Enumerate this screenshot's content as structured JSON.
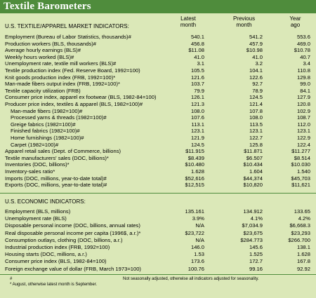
{
  "title": "Textile Barometers",
  "columns": {
    "latest": [
      "Latest",
      "month"
    ],
    "previous": [
      "Previous",
      "month"
    ],
    "year_ago": [
      "Year",
      "ago"
    ]
  },
  "section1": {
    "title": "U.S. TEXTILE/APPAREL MARKET INDICATORS:",
    "rows": [
      {
        "label": "Employment (Bureau of Labor Statistics, thousands)#",
        "latest": "540.1",
        "previous": "541.2",
        "year_ago": "553.6"
      },
      {
        "label": "Production workers (BLS, thousands)#",
        "latest": "456.8",
        "previous": "457.9",
        "year_ago": "469.0"
      },
      {
        "label": "Average hourly earnings (BLS)#",
        "latest": "$11.08",
        "previous": "$10.98",
        "year_ago": "$10.78"
      },
      {
        "label": "Weekly hours worked (BLS)#",
        "latest": "41.0",
        "previous": "41.0",
        "year_ago": "40.7"
      },
      {
        "label": "Unemployment rate, textile mill workers (BLS)#",
        "latest": "3.1",
        "previous": "3.2",
        "year_ago": "3.4"
      },
      {
        "label": "Textile production index (Fed. Reserve Board, 1992=100)",
        "latest": "105.5",
        "previous": "104.1",
        "year_ago": "110.8"
      },
      {
        "label": "Knit goods production index (FRB, 1992=100)*",
        "latest": "121.6",
        "previous": "122.6",
        "year_ago": "129.8"
      },
      {
        "label": "Man-made fibers output index (FRB, 1992=100)*",
        "latest": "103.7",
        "previous": "92.7",
        "year_ago": "99.0"
      },
      {
        "label": "Textile capacity utilization (FRB)",
        "latest": "79.9",
        "previous": "78.9",
        "year_ago": "84.1"
      },
      {
        "label": "Consumer price index, apparel ex footwear (BLS, 1982-84=100)",
        "latest": "126.1",
        "previous": "124.5",
        "year_ago": "127.9"
      },
      {
        "label": "Producer price index, textiles & apparel (BLS, 1982=100)#",
        "latest": "121.3",
        "previous": "121.4",
        "year_ago": "120.8"
      },
      {
        "label": "Man-made fibers (1982=100)#",
        "indent": true,
        "latest": "108.0",
        "previous": "107.8",
        "year_ago": "102.9"
      },
      {
        "label": "Processed yarns & threads (1982=100)#",
        "indent": true,
        "latest": "107.6",
        "previous": "108.0",
        "year_ago": "108.7"
      },
      {
        "label": "Greige fabrics (1982=100)#",
        "indent": true,
        "latest": "113.1",
        "previous": "113.5",
        "year_ago": "112.0"
      },
      {
        "label": "Finished fabrics (1982=100)#",
        "indent": true,
        "latest": "123.1",
        "previous": "123.1",
        "year_ago": "123.1"
      },
      {
        "label": "Home furnishings (1982=100)#",
        "indent": true,
        "latest": "121.9",
        "previous": "122.7",
        "year_ago": "122.9"
      },
      {
        "label": "Carpet (1982=100)#",
        "indent": true,
        "latest": "124.5",
        "previous": "125.8",
        "year_ago": "122.4"
      },
      {
        "label": "Apparel retail sales (Dept. of Commerce, billions)",
        "latest": "$11.915",
        "previous": "$11.871",
        "year_ago": "$11.277"
      },
      {
        "label": "Textile manufacturers' sales (DOC, billions)*",
        "latest": "$8.439",
        "previous": "$6.507",
        "year_ago": "$8.514"
      },
      {
        "label": "Inventories (DOC, billions)*",
        "latest": "$10.480",
        "previous": "$10.434",
        "year_ago": "$10.030"
      },
      {
        "label": "Inventory-sales ratio*",
        "latest": "1.628",
        "previous": "1.604",
        "year_ago": "1.540"
      },
      {
        "label": "Imports (DOC, millions, year-to-date total)#",
        "latest": "$52,616",
        "previous": "$44,374",
        "year_ago": "$45,703"
      },
      {
        "label": "Exports (DOC, millions, year-to-date total)#",
        "latest": "$12,515",
        "previous": "$10,820",
        "year_ago": "$11,621"
      }
    ]
  },
  "section2": {
    "title": "U.S. ECONOMIC INDICATORS:",
    "rows": [
      {
        "label": "Employment (BLS, millions)",
        "latest": "135.161",
        "previous": "134.912",
        "year_ago": "133.65"
      },
      {
        "label": "Unemployment rate (BLS)",
        "latest": "3.9%",
        "previous": "4.1%",
        "year_ago": "4.2%"
      },
      {
        "label": "Disposable personal income (DOC, billions, annual rates)",
        "latest": "N/A",
        "previous": "$7,034.9",
        "year_ago": "$6,668.3"
      },
      {
        "label": "Real disposable personal income per capita (1996$, a.r.)*",
        "latest": "$23,722",
        "previous": "$23,675",
        "year_ago": "$23,293"
      },
      {
        "label": "Consumption outlays, clothing (DOC, billions, a.r.)",
        "latest": "N/A",
        "previous": "$284.773",
        "year_ago": "$266.700"
      },
      {
        "label": "Industrial production index (FRB, 1992=100)",
        "latest": "146.0",
        "previous": "145.6",
        "year_ago": "138.1"
      },
      {
        "label": "Housing starts (DOC, millions, a.r.)",
        "latest": "1.53",
        "previous": "1.525",
        "year_ago": "1.628"
      },
      {
        "label": "Consumer price index (BLS, 1982-84=100)",
        "latest": "173.6",
        "previous": "172.7",
        "year_ago": "167.8"
      },
      {
        "label": "Foreign exchange value of dollar (FRB, March 1973=100)",
        "latest": "100.76",
        "previous": "99.16",
        "year_ago": "92.92"
      }
    ]
  },
  "footnotes": {
    "hash_symbol": "#",
    "hash_text": "Not seasonally adjusted, otherwise all indicators adjusted for seasonality.",
    "star_text": "* August, otherwise latest month is September."
  }
}
